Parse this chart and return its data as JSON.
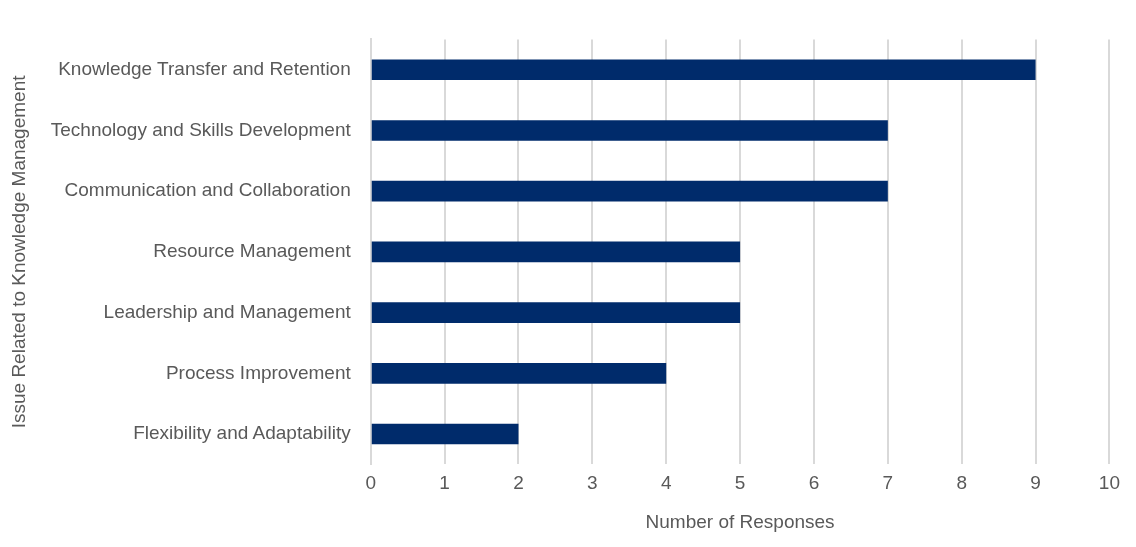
{
  "chart_data": {
    "type": "bar",
    "orientation": "horizontal",
    "xlabel": "Number of Responses",
    "ylabel": "Issue Related to Knowledge Management",
    "categories": [
      "Knowledge Transfer and Retention",
      "Technology and Skills Development",
      "Communication and Collaboration",
      "Resource Management",
      "Leadership and Management",
      "Process Improvement",
      "Flexibility and Adaptability"
    ],
    "values": [
      9,
      7,
      7,
      5,
      5,
      4,
      2
    ],
    "color": "#002b6b",
    "xlim": [
      0,
      10
    ],
    "xticks": [
      0,
      1,
      2,
      3,
      4,
      5,
      6,
      7,
      8,
      9,
      10
    ],
    "grid": "x",
    "legend": false
  }
}
